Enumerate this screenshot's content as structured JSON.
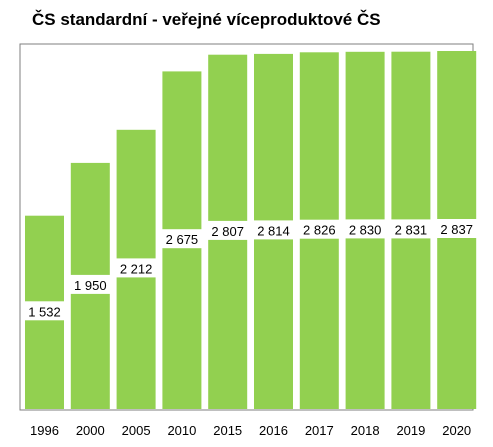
{
  "chart_data": {
    "type": "bar",
    "title": "ČS standardní - veřejné víceproduktové ČS",
    "categories": [
      "1996",
      "2000",
      "2005",
      "2010",
      "2015",
      "2016",
      "2017",
      "2018",
      "2019",
      "2020"
    ],
    "values": [
      1532,
      1950,
      2212,
      2675,
      2807,
      2814,
      2826,
      2830,
      2831,
      2837
    ],
    "value_labels": [
      "1 532",
      "1 950",
      "2 212",
      "2 675",
      "2 807",
      "2 814",
      "2 826",
      "2 830",
      "2 831",
      "2 837"
    ],
    "xlabel": "",
    "ylabel": "",
    "ylim": [
      0,
      2900
    ],
    "bar_color": "#92d050",
    "frame_color": "#7f7f7f",
    "grid": false,
    "legend": "none"
  }
}
